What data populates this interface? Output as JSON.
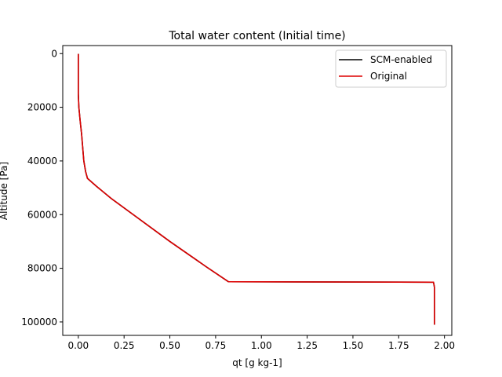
{
  "chart_data": {
    "type": "line",
    "title": "Total water content (Initial time)",
    "xlabel": "qt [g kg-1]",
    "ylabel": "Altitude [Pa]",
    "xlim": [
      -0.085,
      2.04
    ],
    "ylim": [
      105000,
      -3000
    ],
    "y_inverted": true,
    "grid": false,
    "legend_position": "upper right",
    "xticks": [
      0.0,
      0.25,
      0.5,
      0.75,
      1.0,
      1.25,
      1.5,
      1.75,
      2.0
    ],
    "xtick_labels": [
      "0.00",
      "0.25",
      "0.50",
      "0.75",
      "1.00",
      "1.25",
      "1.50",
      "1.75",
      "2.00"
    ],
    "yticks": [
      0,
      20000,
      40000,
      60000,
      80000,
      100000
    ],
    "ytick_labels": [
      "0",
      "20000",
      "40000",
      "60000",
      "80000",
      "100000"
    ],
    "series": [
      {
        "name": "SCM-enabled",
        "color": "#000000",
        "points": [
          [
            0.0,
            100
          ],
          [
            0.0,
            5000
          ],
          [
            0.0,
            10000
          ],
          [
            0.0,
            15000
          ],
          [
            0.003,
            20000
          ],
          [
            0.01,
            25000
          ],
          [
            0.018,
            30000
          ],
          [
            0.024,
            35000
          ],
          [
            0.03,
            40000
          ],
          [
            0.04,
            44000
          ],
          [
            0.05,
            46500
          ],
          [
            0.1,
            49500
          ],
          [
            0.18,
            54000
          ],
          [
            0.3,
            60000
          ],
          [
            0.5,
            70000
          ],
          [
            0.7,
            79500
          ],
          [
            0.82,
            85000
          ],
          [
            1.94,
            85200
          ],
          [
            1.945,
            87000
          ],
          [
            1.945,
            95000
          ],
          [
            1.945,
            101000
          ]
        ]
      },
      {
        "name": "Original",
        "color": "#dd0000",
        "points": [
          [
            0.0,
            100
          ],
          [
            0.0,
            5000
          ],
          [
            0.0,
            10000
          ],
          [
            0.0,
            15000
          ],
          [
            0.003,
            20000
          ],
          [
            0.01,
            25000
          ],
          [
            0.018,
            30000
          ],
          [
            0.024,
            35000
          ],
          [
            0.03,
            40000
          ],
          [
            0.04,
            44000
          ],
          [
            0.05,
            46500
          ],
          [
            0.1,
            49500
          ],
          [
            0.18,
            54000
          ],
          [
            0.3,
            60000
          ],
          [
            0.5,
            70000
          ],
          [
            0.7,
            79500
          ],
          [
            0.82,
            85000
          ],
          [
            1.94,
            85200
          ],
          [
            1.945,
            87000
          ],
          [
            1.945,
            95000
          ],
          [
            1.945,
            101000
          ]
        ]
      }
    ]
  }
}
